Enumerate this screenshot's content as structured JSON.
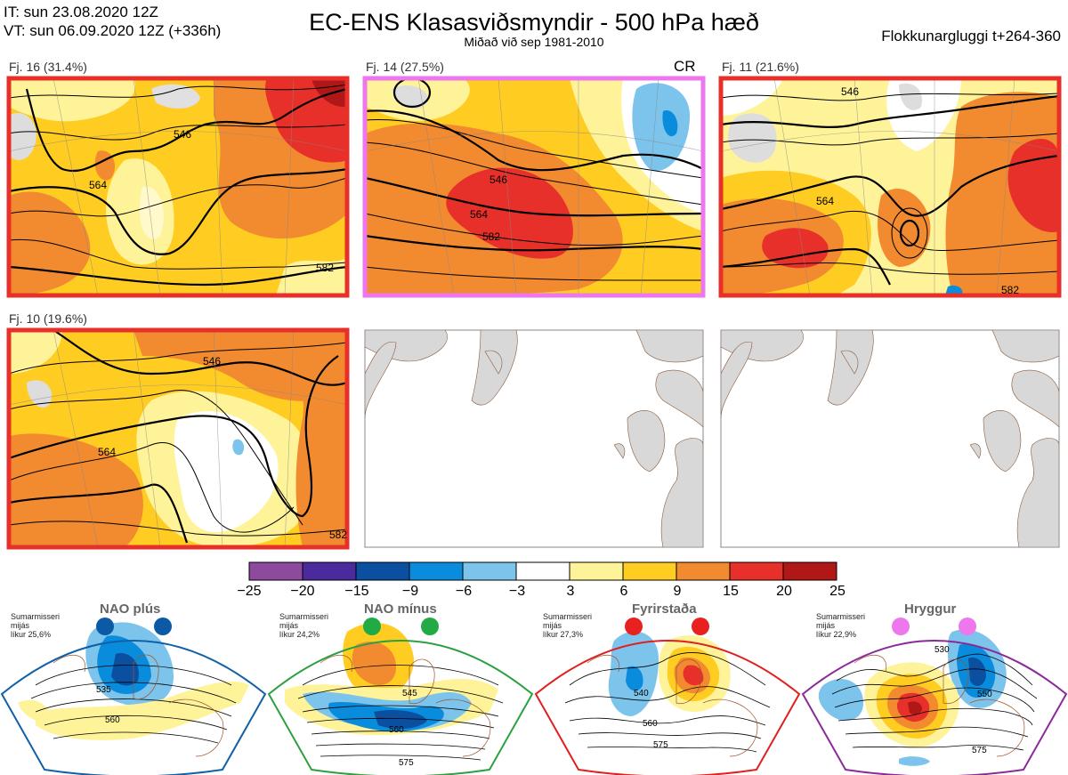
{
  "header": {
    "it_line": "IT: sun 23.08.2020 12Z",
    "vt_line": "VT: sun 06.09.2020 12Z  (+336h)",
    "title": "EC-ENS Klasasviðsmyndir - 500 hPa hæð",
    "subtitle": "Miðað við sep 1981-2010",
    "window": "Flokkunargluggi t+264-360"
  },
  "panels": [
    {
      "label": "Fj. 16 (31.4%)",
      "frame_color": "#e8302a",
      "contours": [
        "546",
        "564",
        "582"
      ]
    },
    {
      "label": "Fj. 14 (27.5%)",
      "frame_color": "#ee77ee",
      "tag": "CR",
      "contours": [
        "546",
        "564",
        "582"
      ]
    },
    {
      "label": "Fj. 11 (21.6%)",
      "frame_color": "#e8302a",
      "contours": [
        "546",
        "564",
        "582"
      ]
    },
    {
      "label": "Fj. 10 (19.6%)",
      "frame_color": "#e8302a",
      "contours": [
        "546",
        "564",
        "582"
      ]
    }
  ],
  "colorbar": {
    "colors": [
      "#8e4a9c",
      "#4a2a9c",
      "#0a4fa0",
      "#0a8cdc",
      "#7cc4ec",
      "#ffffff",
      "#fff399",
      "#ffcc22",
      "#f28a30",
      "#e8302a",
      "#b01818"
    ],
    "ticks": [
      "−25",
      "−20",
      "−15",
      "−9",
      "−6",
      "−3",
      "3",
      "6",
      "9",
      "15",
      "20",
      "25"
    ]
  },
  "regimes": [
    {
      "title": "NAO plús",
      "note": [
        "Sumarmisseri",
        "mijás",
        "líkur 25,6%"
      ],
      "frame_color": "#1060a8",
      "marker_color": "#0c5aa6",
      "contours": [
        "535",
        "560"
      ]
    },
    {
      "title": "NAO mínus",
      "note": [
        "Sumarmisseri",
        "mijás",
        "líkur 24,2%"
      ],
      "frame_color": "#2ca040",
      "marker_color": "#22aa44",
      "contours": [
        "545",
        "560",
        "575"
      ]
    },
    {
      "title": "Fyrirstaða",
      "note": [
        "Sumarmisseri",
        "mijás",
        "líkur 27,3%"
      ],
      "frame_color": "#e02020",
      "marker_color": "#e82020",
      "contours": [
        "540",
        "560",
        "575"
      ]
    },
    {
      "title": "Hryggur",
      "note": [
        "Sumarmisseri",
        "mijás",
        "líkur 22,9%"
      ],
      "frame_color": "#8a2a9a",
      "marker_color": "#ee77ee",
      "contours": [
        "530",
        "550",
        "575"
      ]
    }
  ]
}
